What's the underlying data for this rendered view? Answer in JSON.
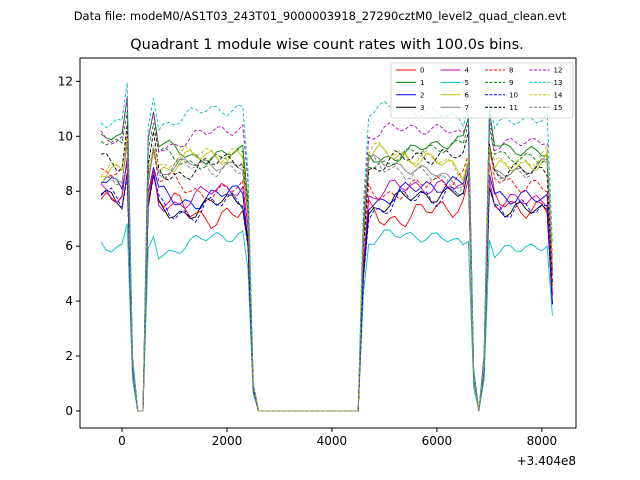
{
  "header_text": "Data file: modeM0/AS1T03_243T01_9000003918_27290cztM0_level2_quad_clean.evt",
  "chart_data": {
    "type": "line",
    "title": "Quadrant 1 module wise count rates with 100.0s bins.",
    "xlabel": "",
    "ylabel": "",
    "x_offset_label": "+3.404e8",
    "xlim": [
      -800,
      8650
    ],
    "ylim": [
      -0.62,
      12.85
    ],
    "x_ticks": [
      0,
      2000,
      4000,
      6000,
      8000
    ],
    "x_tick_labels": [
      "0",
      "2000",
      "4000",
      "6000",
      "8000"
    ],
    "y_ticks": [
      0,
      2,
      4,
      6,
      8,
      10,
      12
    ],
    "y_tick_labels": [
      "0",
      "2",
      "4",
      "6",
      "8",
      "10",
      "12"
    ],
    "legend_position": "top-right",
    "legend_columns": 4,
    "series": [
      {
        "name": "0",
        "color": "#ff0000",
        "dash": "solid",
        "base": 7.4,
        "amp": 0.5,
        "phase": 0.3
      },
      {
        "name": "1",
        "color": "#008000",
        "dash": "solid",
        "base": 9.6,
        "amp": 0.3,
        "phase": 1.1
      },
      {
        "name": "2",
        "color": "#0000ff",
        "dash": "solid",
        "base": 8.0,
        "amp": 0.4,
        "phase": 2.0
      },
      {
        "name": "3",
        "color": "#000000",
        "dash": "solid",
        "base": 7.6,
        "amp": 0.4,
        "phase": 2.7
      },
      {
        "name": "4",
        "color": "#bf00bf",
        "dash": "solid",
        "base": 7.9,
        "amp": 0.4,
        "phase": 3.5
      },
      {
        "name": "5",
        "color": "#00bfbf",
        "dash": "solid",
        "base": 6.1,
        "amp": 0.3,
        "phase": 4.2
      },
      {
        "name": "6",
        "color": "#bfbf00",
        "dash": "solid",
        "base": 9.0,
        "amp": 0.4,
        "phase": 5.0
      },
      {
        "name": "7",
        "color": "#808080",
        "dash": "solid",
        "base": 8.7,
        "amp": 0.3,
        "phase": 5.7
      },
      {
        "name": "8",
        "color": "#ff0000",
        "dash": "dashed",
        "base": 8.3,
        "amp": 0.4,
        "phase": 0.8
      },
      {
        "name": "9",
        "color": "#008000",
        "dash": "dashed",
        "base": 9.4,
        "amp": 0.3,
        "phase": 1.6
      },
      {
        "name": "10",
        "color": "#0000ff",
        "dash": "dashed",
        "base": 7.6,
        "amp": 0.5,
        "phase": 2.4
      },
      {
        "name": "11",
        "color": "#000000",
        "dash": "dashed",
        "base": 9.0,
        "amp": 0.4,
        "phase": 3.1
      },
      {
        "name": "12",
        "color": "#bf00bf",
        "dash": "dashed",
        "base": 10.0,
        "amp": 0.3,
        "phase": 3.9
      },
      {
        "name": "13",
        "color": "#00bfbf",
        "dash": "dashed",
        "base": 10.7,
        "amp": 0.3,
        "phase": 4.6
      },
      {
        "name": "14",
        "color": "#bfbf00",
        "dash": "dashed",
        "base": 9.1,
        "amp": 0.4,
        "phase": 5.3
      },
      {
        "name": "15",
        "color": "#808080",
        "dash": "dashed",
        "base": 8.6,
        "amp": 0.4,
        "phase": 6.0
      }
    ],
    "time_profile": {
      "x_start": -400,
      "x_end": 8200,
      "step": 100,
      "gap_start": 2600,
      "gap_end": 4500,
      "dip_points": [
        {
          "x": 200,
          "factor": 0.2
        },
        {
          "x": 300,
          "factor": 0.0
        },
        {
          "x": 400,
          "factor": 0.0
        },
        {
          "x": 2500,
          "factor": 0.1
        },
        {
          "x": 6700,
          "factor": 0.15
        },
        {
          "x": 6800,
          "factor": 0.0
        },
        {
          "x": 6900,
          "factor": 0.2
        }
      ],
      "peak_points": [
        {
          "x": 100,
          "factor": 1.15
        },
        {
          "x": 600,
          "factor": 1.12
        },
        {
          "x": 6600,
          "factor": 1.08
        },
        {
          "x": 7000,
          "factor": 1.1
        }
      ],
      "edge_points": [
        {
          "x": 2400,
          "factor": 0.8
        },
        {
          "x": 4600,
          "factor": 0.7
        },
        {
          "x": 8200,
          "factor": 0.55
        }
      ]
    }
  }
}
